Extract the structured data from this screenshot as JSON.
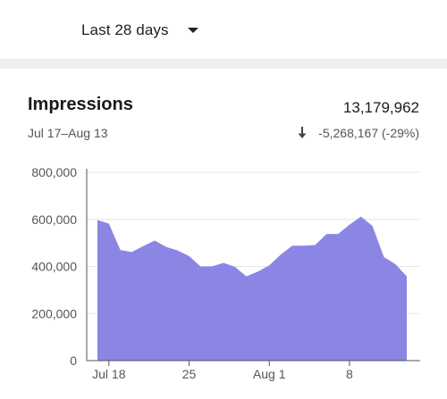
{
  "filter": {
    "range_label": "Last 28 days",
    "caret_icon": "caret-down-icon"
  },
  "metric": {
    "title": "Impressions",
    "value": "13,179,962",
    "date_range": "Jul 17–Aug 13",
    "change": "-5,268,167 (-29%)",
    "change_icon": "arrow-down-icon"
  },
  "colors": {
    "area_fill": "#8b86e4",
    "grid": "#e6e6e6",
    "axis": "#555555"
  },
  "chart_data": {
    "type": "area",
    "x_tick_labels": [
      "Jul 18",
      "25",
      "Aug 1",
      "8"
    ],
    "x_tick_days": [
      1,
      8,
      15,
      22
    ],
    "y_ticks": [
      0,
      200000,
      400000,
      600000,
      800000
    ],
    "y_tick_labels": [
      "0",
      "200,000",
      "400,000",
      "600,000",
      "800,000"
    ],
    "ylim": [
      0,
      800000
    ],
    "series": [
      {
        "values": [
          597000,
          582000,
          470000,
          461000,
          487000,
          510000,
          483000,
          468000,
          444000,
          400000,
          400000,
          415000,
          398000,
          358000,
          378000,
          405000,
          450000,
          488000,
          488000,
          491000,
          538000,
          538000,
          577000,
          612000,
          572000,
          440000,
          410000,
          358000
        ]
      }
    ]
  }
}
